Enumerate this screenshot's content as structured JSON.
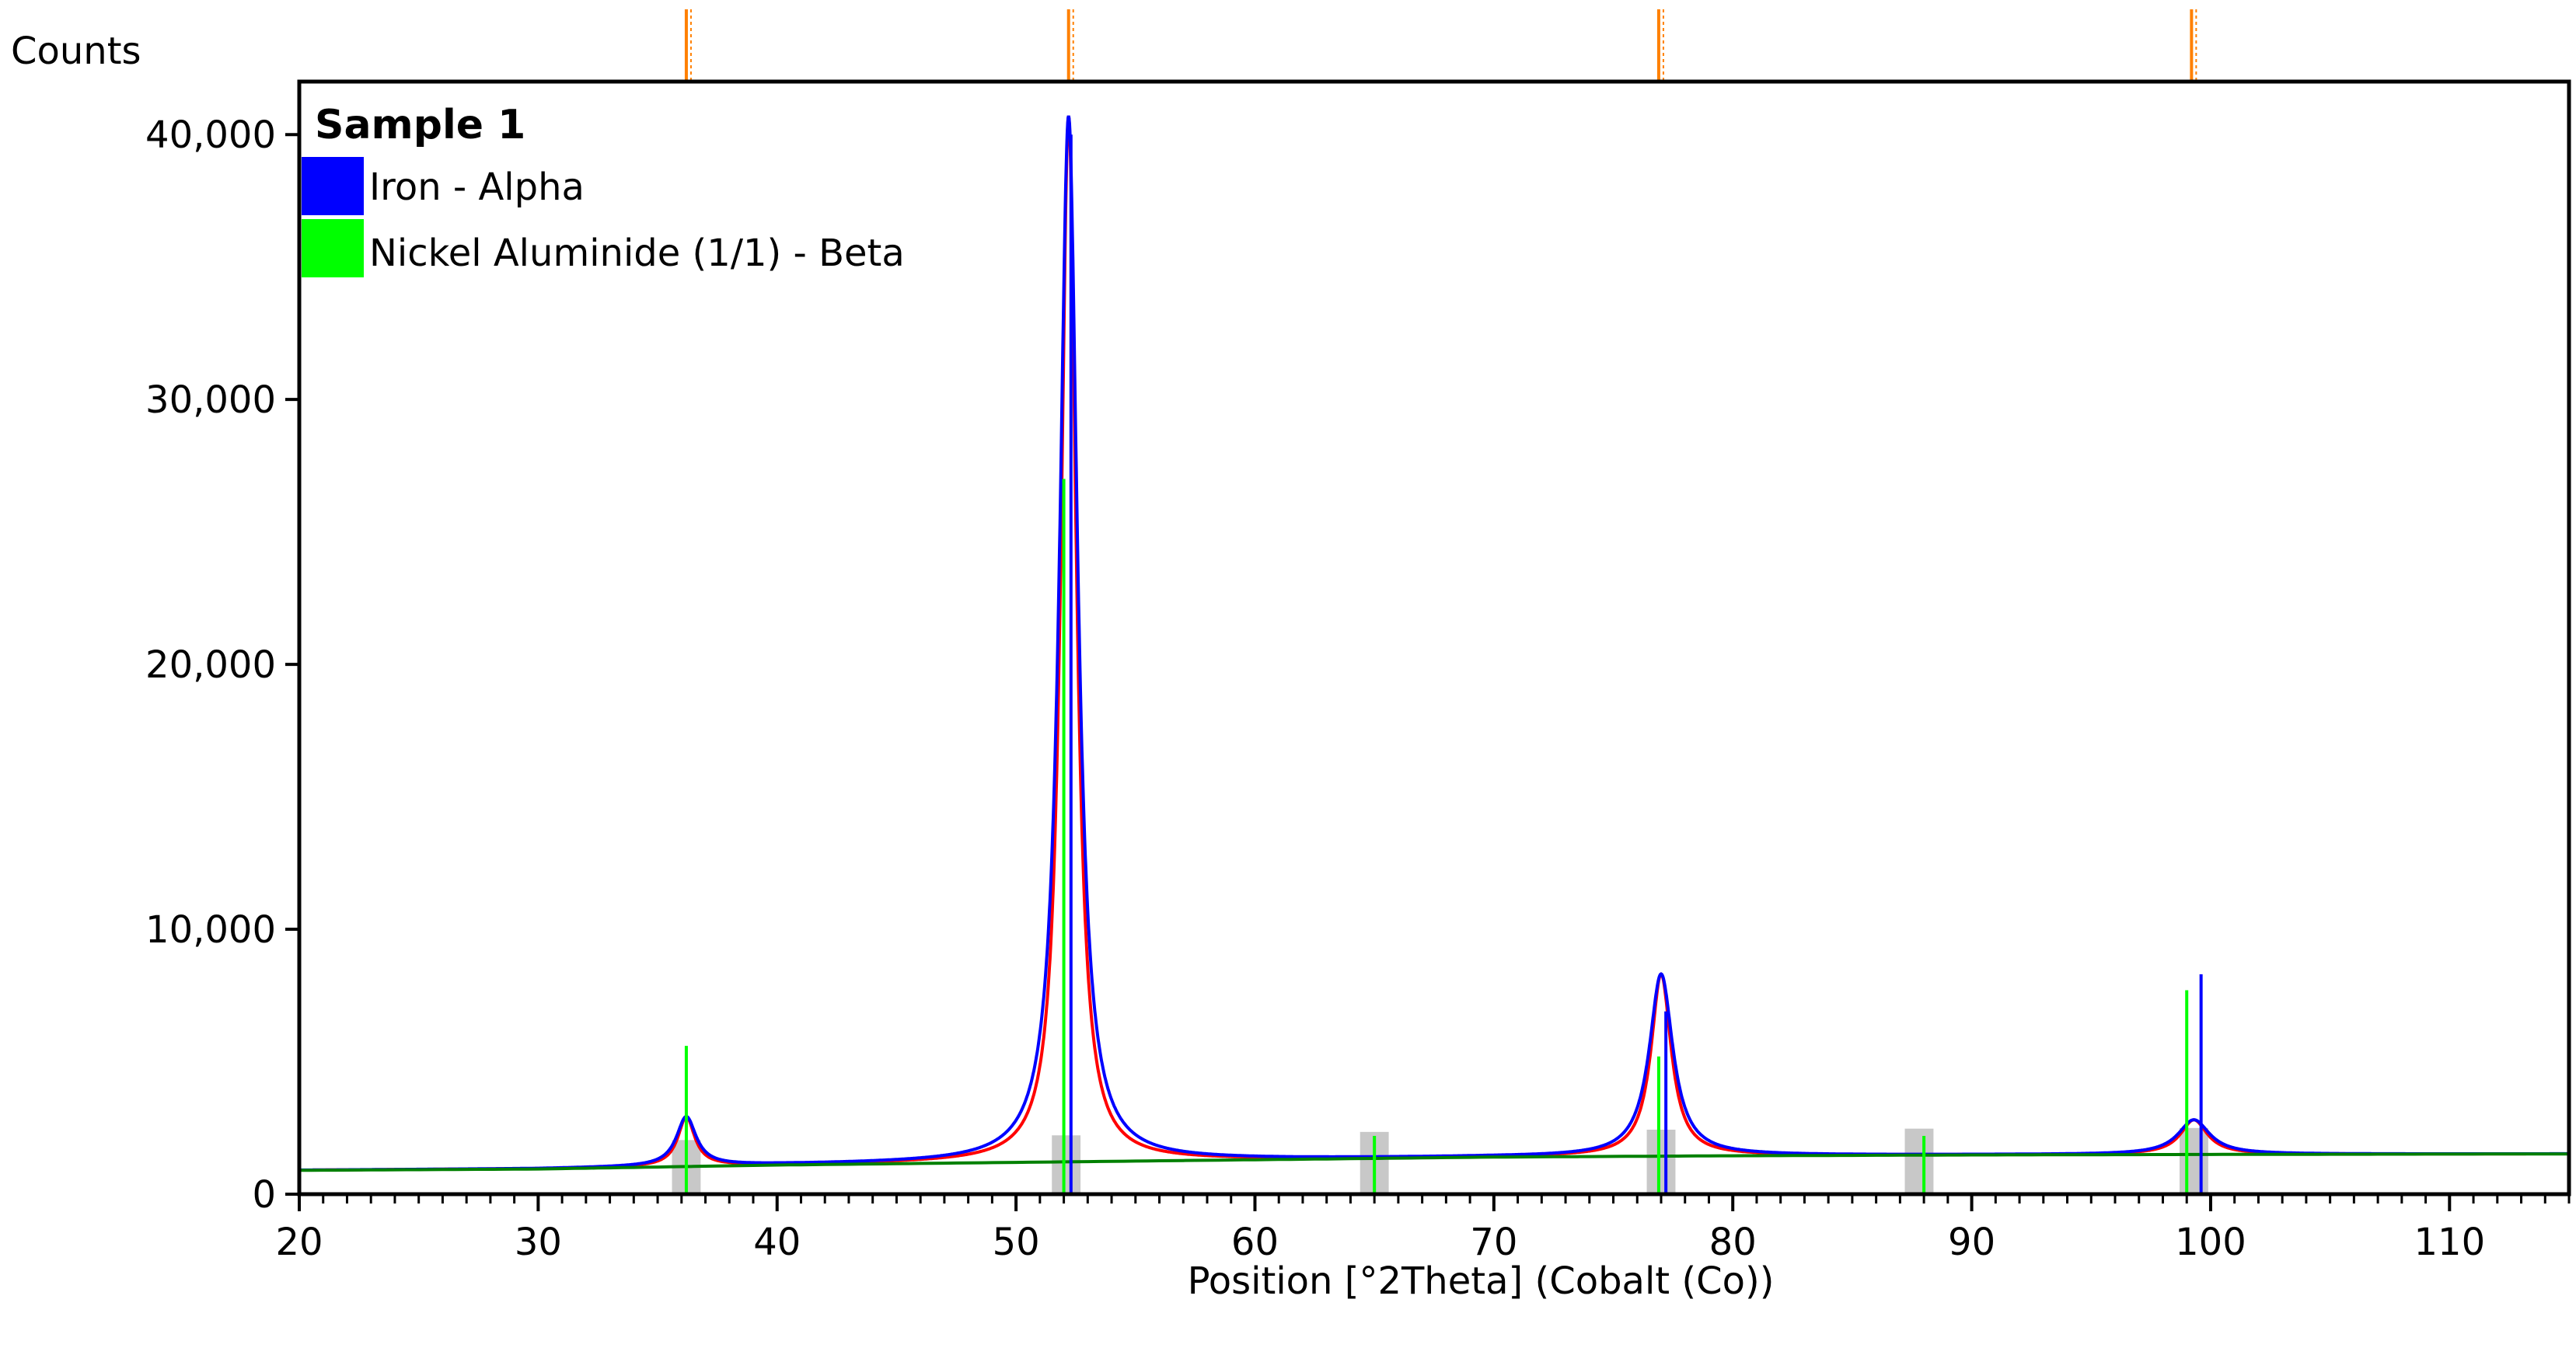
{
  "chart_data": {
    "type": "line",
    "title": "",
    "ylabel": "Counts",
    "xlabel": "Position [°2Theta] (Cobalt (Co))",
    "xlim": [
      20,
      115
    ],
    "ylim": [
      0,
      42000
    ],
    "x_ticks": [
      20,
      30,
      40,
      50,
      60,
      70,
      80,
      90,
      100,
      110
    ],
    "x_tick_labels": [
      "20",
      "30",
      "40",
      "50",
      "60",
      "70",
      "80",
      "90",
      "100",
      "110"
    ],
    "x_minor_step": 1,
    "y_ticks": [
      0,
      10000,
      20000,
      30000,
      40000
    ],
    "y_tick_labels": [
      "0",
      "10,000",
      "20,000",
      "30,000",
      "40,000"
    ],
    "grid": false,
    "legend": {
      "title": "Sample 1",
      "placement": "top-left",
      "entries": [
        {
          "label": "Iron - Alpha",
          "color": "#0000ff"
        },
        {
          "label": "Nickel Aluminide (1/1) - Beta",
          "color": "#00ff00"
        }
      ]
    },
    "colors": {
      "observed": "#ff0000",
      "calculated": "#0000ff",
      "background": "#008000",
      "phase_iron": "#0000ff",
      "phase_nial": "#00ff00",
      "peak_marker": "#ff8000",
      "peak_region": "#c8c8c8"
    },
    "background_points": {
      "x": [
        20,
        30,
        40,
        50,
        60,
        70,
        80,
        90,
        100,
        115
      ],
      "y": [
        900,
        950,
        1100,
        1200,
        1300,
        1400,
        1450,
        1480,
        1500,
        1520
      ]
    },
    "peaks": [
      {
        "position": 36.2,
        "counts": 2900,
        "width": 0.5
      },
      {
        "position": 52.2,
        "counts": 40700,
        "width": 0.45
      },
      {
        "position": 77.0,
        "counts": 8300,
        "width": 0.6
      },
      {
        "position": 99.3,
        "counts": 2800,
        "width": 0.8
      }
    ],
    "reference_lines": [
      {
        "phase": "Iron - Alpha",
        "positions": [
          52.3,
          77.2,
          99.6
        ],
        "intensities": [
          40000,
          6900,
          8300
        ]
      },
      {
        "phase": "Nickel Aluminide (1/1) - Beta",
        "positions": [
          36.2,
          52.0,
          65.0,
          76.9,
          88.0,
          99.0
        ],
        "intensities": [
          5600,
          27000,
          2200,
          5200,
          2200,
          7700
        ]
      }
    ],
    "peak_markers": [
      36.2,
      52.2,
      76.9,
      99.2
    ]
  }
}
